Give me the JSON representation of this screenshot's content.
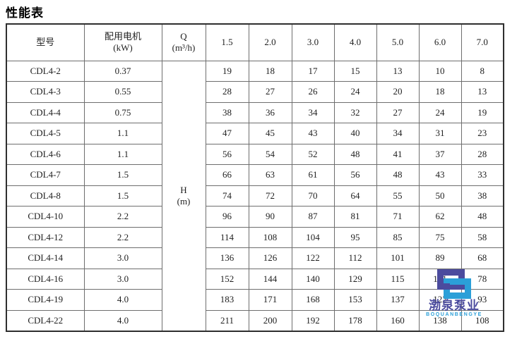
{
  "title": "性能表",
  "table": {
    "model_header": "型号",
    "motor_header": {
      "line1": "配用电机",
      "line2": "(kW)"
    },
    "q_header": {
      "line1": "Q",
      "line2": "(m³/h)"
    },
    "h_cell": {
      "line1": "H",
      "line2": "(m)"
    },
    "flow_columns": [
      "1.5",
      "2.0",
      "3.0",
      "4.0",
      "5.0",
      "6.0",
      "7.0"
    ],
    "rows": [
      {
        "model": "CDL4-2",
        "kw": "0.37",
        "values": [
          "19",
          "18",
          "17",
          "15",
          "13",
          "10",
          "8"
        ]
      },
      {
        "model": "CDL4-3",
        "kw": "0.55",
        "values": [
          "28",
          "27",
          "26",
          "24",
          "20",
          "18",
          "13"
        ]
      },
      {
        "model": "CDL4-4",
        "kw": "0.75",
        "values": [
          "38",
          "36",
          "34",
          "32",
          "27",
          "24",
          "19"
        ]
      },
      {
        "model": "CDL4-5",
        "kw": "1.1",
        "values": [
          "47",
          "45",
          "43",
          "40",
          "34",
          "31",
          "23"
        ]
      },
      {
        "model": "CDL4-6",
        "kw": "1.1",
        "values": [
          "56",
          "54",
          "52",
          "48",
          "41",
          "37",
          "28"
        ]
      },
      {
        "model": "CDL4-7",
        "kw": "1.5",
        "values": [
          "66",
          "63",
          "61",
          "56",
          "48",
          "43",
          "33"
        ]
      },
      {
        "model": "CDL4-8",
        "kw": "1.5",
        "values": [
          "74",
          "72",
          "70",
          "64",
          "55",
          "50",
          "38"
        ]
      },
      {
        "model": "CDL4-10",
        "kw": "2.2",
        "values": [
          "96",
          "90",
          "87",
          "81",
          "71",
          "62",
          "48"
        ]
      },
      {
        "model": "CDL4-12",
        "kw": "2.2",
        "values": [
          "114",
          "108",
          "104",
          "95",
          "85",
          "75",
          "58"
        ]
      },
      {
        "model": "CDL4-14",
        "kw": "3.0",
        "values": [
          "136",
          "126",
          "122",
          "112",
          "101",
          "89",
          "68"
        ]
      },
      {
        "model": "CDL4-16",
        "kw": "3.0",
        "values": [
          "152",
          "144",
          "140",
          "129",
          "115",
          "101",
          "78"
        ]
      },
      {
        "model": "CDL4-19",
        "kw": "4.0",
        "values": [
          "183",
          "171",
          "168",
          "153",
          "137",
          "122",
          "93"
        ]
      },
      {
        "model": "CDL4-22",
        "kw": "4.0",
        "values": [
          "211",
          "200",
          "192",
          "178",
          "160",
          "138",
          "108"
        ]
      }
    ]
  },
  "watermark": {
    "brand_cn": "渤泉泵业",
    "brand_en": "BOQUANBENGYE",
    "logo_dark_color": "#4b4b9e",
    "logo_light_color": "#2b9fd8"
  }
}
